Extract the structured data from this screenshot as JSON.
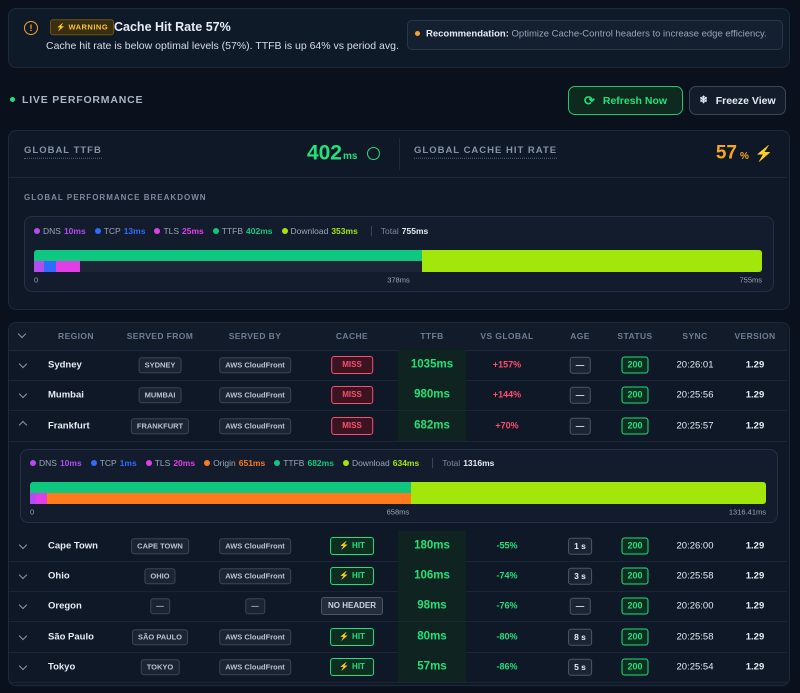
{
  "alert": {
    "badge": "WARNING",
    "title": "Cache Hit Rate 57%",
    "message": "Cache hit rate is below optimal levels (57%). TTFB is up 64% vs period avg.",
    "recommendation_label": "Recommendation:",
    "recommendation": "Optimize Cache-Control headers to increase edge efficiency."
  },
  "live": {
    "title": "LIVE PERFORMANCE",
    "refresh": "Refresh Now",
    "freeze": "Freeze View"
  },
  "metrics": {
    "ttfb": {
      "label": "GLOBAL TTFB",
      "value": "402",
      "unit": "ms"
    },
    "cache": {
      "label": "GLOBAL CACHE HIT RATE",
      "value": "57",
      "unit": "%"
    }
  },
  "breakdown": {
    "title": "GLOBAL PERFORMANCE BREAKDOWN",
    "phases": [
      {
        "name": "DNS",
        "value": "10ms",
        "color": "#b44cf0"
      },
      {
        "name": "TCP",
        "value": "13ms",
        "color": "#2f6bff"
      },
      {
        "name": "TLS",
        "value": "25ms",
        "color": "#e23ee8"
      },
      {
        "name": "TTFB",
        "value": "402ms",
        "color": "#10c77f"
      },
      {
        "name": "Download",
        "value": "353ms",
        "color": "#a3e60c"
      }
    ],
    "total_label": "Total",
    "total": "755ms",
    "ticks": [
      "0",
      "378ms",
      "755ms"
    ]
  },
  "table": {
    "headers": [
      "REGION",
      "SERVED FROM",
      "SERVED BY",
      "CACHE",
      "TTFB",
      "VS GLOBAL",
      "AGE",
      "STATUS",
      "SYNC",
      "VERSION"
    ],
    "rows": [
      [
        "Sydney",
        "SYDNEY",
        "AWS CloudFront",
        "MISS",
        "1035ms",
        "+157%",
        "—",
        "200",
        "20:26:01",
        "1.29"
      ],
      [
        "Mumbai",
        "MUMBAI",
        "AWS CloudFront",
        "MISS",
        "980ms",
        "+144%",
        "—",
        "200",
        "20:25:56",
        "1.29"
      ],
      [
        "Frankfurt",
        "FRANKFURT",
        "AWS CloudFront",
        "MISS",
        "682ms",
        "+70%",
        "—",
        "200",
        "20:25:57",
        "1.29"
      ],
      [
        "Cape Town",
        "CAPE TOWN",
        "AWS CloudFront",
        "HIT",
        "180ms",
        "-55%",
        "1 s",
        "200",
        "20:26:00",
        "1.29"
      ],
      [
        "Ohio",
        "OHIO",
        "AWS CloudFront",
        "HIT",
        "106ms",
        "-74%",
        "3 s",
        "200",
        "20:25:58",
        "1.29"
      ],
      [
        "Oregon",
        "—",
        "—",
        "NO HEADER",
        "98ms",
        "-76%",
        "—",
        "200",
        "20:26:00",
        "1.29"
      ],
      [
        "São Paulo",
        "SÃO PAULO",
        "AWS CloudFront",
        "HIT",
        "80ms",
        "-80%",
        "8 s",
        "200",
        "20:25:58",
        "1.29"
      ],
      [
        "Tokyo",
        "TOKYO",
        "AWS CloudFront",
        "HIT",
        "57ms",
        "-86%",
        "5 s",
        "200",
        "20:25:54",
        "1.29"
      ]
    ],
    "expanded": {
      "phases": [
        {
          "name": "DNS",
          "value": "10ms",
          "color": "#b44cf0"
        },
        {
          "name": "TCP",
          "value": "1ms",
          "color": "#2f6bff"
        },
        {
          "name": "TLS",
          "value": "20ms",
          "color": "#e23ee8"
        },
        {
          "name": "Origin",
          "value": "651ms",
          "color": "#ff7a1a"
        },
        {
          "name": "TTFB",
          "value": "682ms",
          "color": "#10c77f"
        },
        {
          "name": "Download",
          "value": "634ms",
          "color": "#a3e60c"
        }
      ],
      "total_label": "Total",
      "total": "1316ms",
      "ticks": [
        "0",
        "658ms",
        "1316.41ms"
      ]
    }
  }
}
